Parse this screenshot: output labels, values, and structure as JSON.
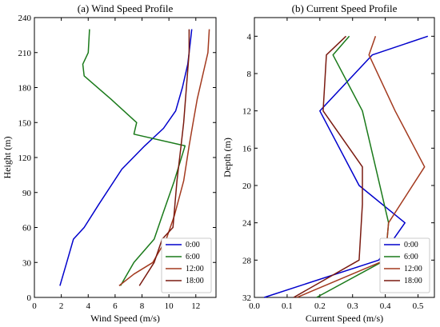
{
  "chart_data": [
    {
      "type": "line",
      "title": "(a) Wind Speed Profile",
      "xlabel": "Wind Speed (m/s)",
      "ylabel": "Height (m)",
      "xlim": [
        0,
        13.5
      ],
      "ylim": [
        0,
        240
      ],
      "xticks": [
        0,
        2,
        4,
        6,
        8,
        10,
        12
      ],
      "yticks": [
        0,
        30,
        60,
        90,
        120,
        150,
        180,
        210,
        240
      ],
      "y_inverted": false,
      "legend_placement": "bottom-right",
      "series": [
        {
          "name": "0:00",
          "color": "#0000cc",
          "x": [
            1.9,
            2.4,
            2.9,
            3.7,
            4.8,
            6.5,
            8.2,
            9.6,
            10.5,
            11.0,
            11.4,
            11.6,
            11.7
          ],
          "y": [
            10,
            30,
            50,
            60,
            80,
            110,
            130,
            145,
            160,
            180,
            200,
            220,
            230
          ]
        },
        {
          "name": "6:00",
          "color": "#1a7a1a",
          "x": [
            6.4,
            7.4,
            8.9,
            9.5,
            10.4,
            11.2,
            7.4,
            7.6,
            5.7,
            3.7,
            3.6,
            4.0,
            4.1
          ],
          "y": [
            10,
            30,
            50,
            70,
            100,
            130,
            140,
            150,
            170,
            190,
            200,
            210,
            230
          ]
        },
        {
          "name": "12:00",
          "color": "#a33a1f",
          "x": [
            6.3,
            7.4,
            8.8,
            9.8,
            10.4,
            11.1,
            11.5,
            11.8,
            12.1,
            12.5,
            12.9,
            13.0
          ],
          "y": [
            10,
            20,
            30,
            50,
            70,
            100,
            130,
            150,
            170,
            190,
            210,
            230
          ]
        },
        {
          "name": "18:00",
          "color": "#7a1a10",
          "x": [
            7.8,
            8.9,
            9.5,
            10.3,
            10.6,
            10.9,
            11.1,
            11.3,
            11.5,
            11.5
          ],
          "y": [
            10,
            30,
            50,
            60,
            100,
            130,
            150,
            180,
            210,
            230
          ]
        }
      ]
    },
    {
      "type": "line",
      "title": "(b) Current Speed Profile",
      "xlabel": "Current Speed (m/s)",
      "ylabel": "Depth (m)",
      "xlim": [
        0.0,
        0.55
      ],
      "ylim": [
        32,
        2
      ],
      "xticks": [
        0.0,
        0.1,
        0.2,
        0.3,
        0.4,
        0.5
      ],
      "yticks": [
        4,
        8,
        12,
        16,
        20,
        24,
        28,
        32
      ],
      "y_inverted": true,
      "legend_placement": "bottom-right",
      "series": [
        {
          "name": "0:00",
          "color": "#0000cc",
          "x": [
            0.53,
            0.36,
            0.2,
            0.32,
            0.46,
            0.38,
            0.03
          ],
          "y": [
            4,
            6,
            12,
            20,
            24,
            28,
            32
          ]
        },
        {
          "name": "6:00",
          "color": "#1a7a1a",
          "x": [
            0.29,
            0.24,
            0.33,
            0.37,
            0.41,
            0.4,
            0.19
          ],
          "y": [
            4,
            6,
            12,
            18,
            24,
            28,
            32
          ]
        },
        {
          "name": "12:00",
          "color": "#a33a1f",
          "x": [
            0.37,
            0.35,
            0.43,
            0.52,
            0.41,
            0.4,
            0.13
          ],
          "y": [
            4,
            6,
            12,
            18,
            24,
            28,
            32
          ]
        },
        {
          "name": "18:00",
          "color": "#7a1a10",
          "x": [
            0.28,
            0.22,
            0.21,
            0.33,
            0.33,
            0.32,
            0.12
          ],
          "y": [
            4,
            6,
            12,
            18,
            22,
            28,
            32
          ]
        }
      ]
    }
  ]
}
